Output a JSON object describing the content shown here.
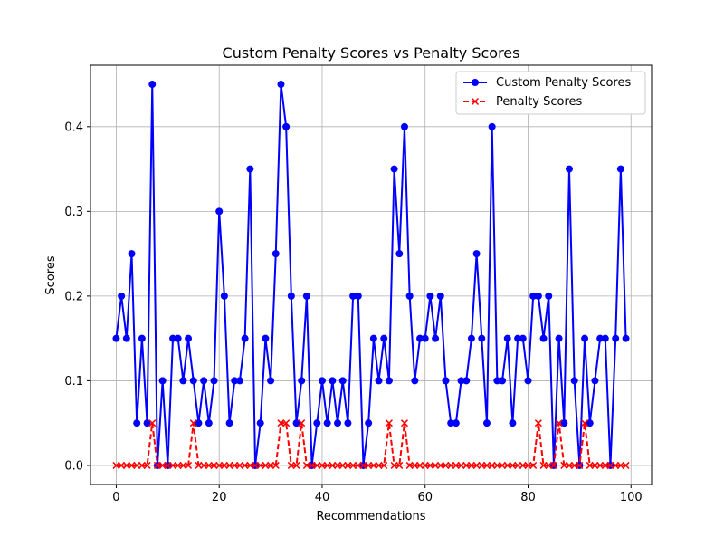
{
  "chart_data": {
    "type": "line",
    "title": "Custom Penalty Scores vs Penalty Scores",
    "xlabel": "Recommendations",
    "ylabel": "Scores",
    "xlim": [
      -5,
      104
    ],
    "ylim": [
      -0.0225,
      0.4725
    ],
    "x_ticks": [
      0,
      20,
      40,
      60,
      80,
      100
    ],
    "y_ticks": [
      0.0,
      0.1,
      0.2,
      0.3,
      0.4
    ],
    "x_tick_labels": [
      "0",
      "20",
      "40",
      "60",
      "80",
      "100"
    ],
    "y_tick_labels": [
      "0.0",
      "0.1",
      "0.2",
      "0.3",
      "0.4"
    ],
    "grid": true,
    "legend_position": "top-right",
    "series": [
      {
        "name": "Custom Penalty Scores",
        "color": "#0000ff",
        "line_style": "solid",
        "marker": "circle",
        "values": [
          0.15,
          0.2,
          0.15,
          0.25,
          0.05,
          0.15,
          0.05,
          0.45,
          0.0,
          0.1,
          0.0,
          0.15,
          0.15,
          0.1,
          0.15,
          0.1,
          0.05,
          0.1,
          0.05,
          0.1,
          0.3,
          0.2,
          0.05,
          0.1,
          0.1,
          0.15,
          0.35,
          0.0,
          0.05,
          0.15,
          0.1,
          0.25,
          0.45,
          0.4,
          0.2,
          0.05,
          0.1,
          0.2,
          0.0,
          0.05,
          0.1,
          0.05,
          0.1,
          0.05,
          0.1,
          0.05,
          0.2,
          0.2,
          0.0,
          0.05,
          0.15,
          0.1,
          0.15,
          0.1,
          0.35,
          0.25,
          0.4,
          0.2,
          0.1,
          0.15,
          0.15,
          0.2,
          0.15,
          0.2,
          0.1,
          0.05,
          0.05,
          0.1,
          0.1,
          0.15,
          0.25,
          0.15,
          0.05,
          0.4,
          0.1,
          0.1,
          0.15,
          0.05,
          0.15,
          0.15,
          0.1,
          0.2,
          0.2,
          0.15,
          0.2,
          0.0,
          0.15,
          0.05,
          0.35,
          0.1,
          0.0,
          0.15,
          0.05,
          0.1,
          0.15,
          0.15,
          0.0,
          0.15,
          0.35,
          0.15
        ]
      },
      {
        "name": "Penalty Scores",
        "color": "#ff0000",
        "line_style": "dashed",
        "marker": "x",
        "values": [
          0,
          0,
          0,
          0,
          0,
          0,
          0,
          0.05,
          0,
          0,
          0,
          0,
          0,
          0,
          0,
          0.05,
          0,
          0,
          0,
          0,
          0,
          0,
          0,
          0,
          0,
          0,
          0,
          0,
          0,
          0,
          0,
          0,
          0.05,
          0.05,
          0,
          0,
          0.05,
          0,
          0,
          0,
          0,
          0,
          0,
          0,
          0,
          0,
          0,
          0,
          0,
          0,
          0,
          0,
          0,
          0.05,
          0,
          0,
          0.05,
          0,
          0,
          0,
          0,
          0,
          0,
          0,
          0,
          0,
          0,
          0,
          0,
          0,
          0,
          0,
          0,
          0,
          0,
          0,
          0,
          0,
          0,
          0,
          0,
          0,
          0.05,
          0,
          0,
          0,
          0.05,
          0,
          0,
          0,
          0,
          0.05,
          0,
          0,
          0,
          0,
          0,
          0,
          0,
          0
        ]
      }
    ]
  }
}
